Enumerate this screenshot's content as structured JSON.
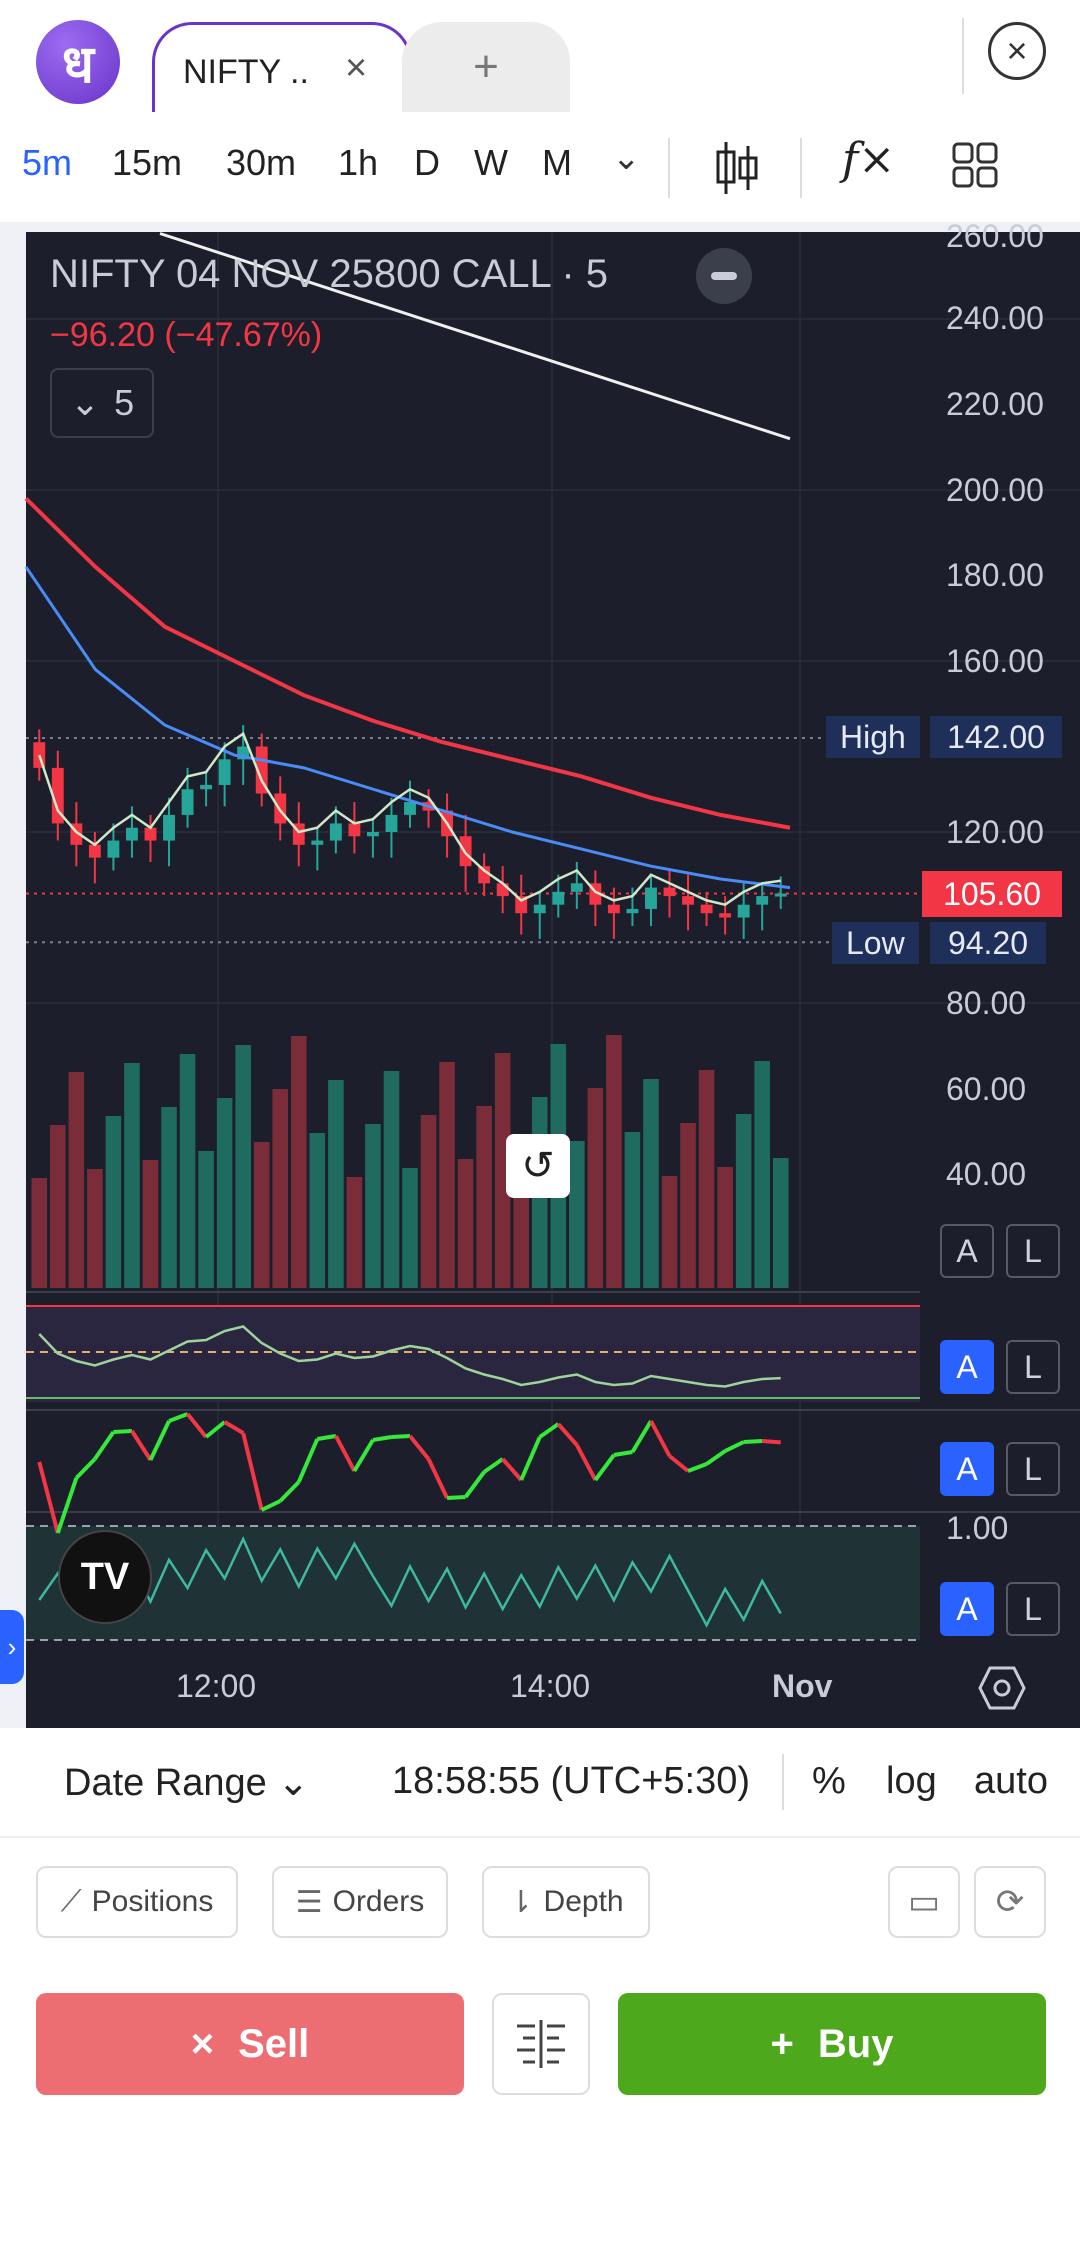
{
  "topbar": {
    "logo_glyph": "ध",
    "active_tab_label": "NIFTY ..",
    "close_glyph": "×",
    "new_tab_glyph": "+",
    "close_window_glyph": "×"
  },
  "timeframes": {
    "items": [
      "5m",
      "15m",
      "30m",
      "1h",
      "D",
      "W",
      "M"
    ],
    "active": "5m",
    "more_glyph": "⌄",
    "fx_label": "f×"
  },
  "chart": {
    "symbol_title": "NIFTY 04 NOV 25800 CALL · 5",
    "change_text": "−96.20 (−47.67%)",
    "collapse_count": "5",
    "price_axis": [
      "260.00",
      "240.00",
      "220.00",
      "200.00",
      "180.00",
      "160.00",
      "120.00",
      "80.00",
      "60.00",
      "40.00"
    ],
    "high_label": "High",
    "high_value": "142.00",
    "low_label": "Low",
    "low_value": "94.20",
    "current_price": "105.60",
    "panel_value_label": "1.00",
    "time_axis": [
      "12:00",
      "14:00",
      "Nov"
    ],
    "al_a": "A",
    "al_l": "L",
    "reset_glyph": "↺",
    "tv_logo": "TV",
    "colors": {
      "up": "#26a69a",
      "down": "#f23645",
      "ema_red": "#f23645",
      "ema_blue": "#4a8cf7",
      "ema_white": "#f0f0f0",
      "accent": "#2962ff"
    }
  },
  "chart_data": {
    "type": "line",
    "title": "NIFTY 04 NOV 25800 CALL · 5",
    "ylim": [
      80,
      260
    ],
    "x_ticks": [
      "12:00",
      "14:00",
      "Nov"
    ],
    "closes": [
      135,
      122,
      117,
      114,
      118,
      121,
      118,
      124,
      130,
      131,
      137,
      140,
      129,
      122,
      117,
      118,
      122,
      119,
      120,
      124,
      127,
      125,
      119,
      112,
      108,
      105,
      101,
      103,
      106,
      108,
      103,
      101,
      102,
      107,
      105,
      103,
      101,
      100,
      103,
      105,
      105.6
    ],
    "series": [
      {
        "name": "",
        "color": "#f23645",
        "values": [
          198,
          182,
          168,
          160,
          152,
          146,
          141,
          137,
          133,
          128,
          124,
          121
        ]
      },
      {
        "name": "",
        "color": "#4a8cf7",
        "values": [
          182,
          158,
          145,
          138,
          135,
          130,
          125,
          120,
          116,
          112,
          109,
          107
        ]
      },
      {
        "name": "",
        "color": "#f0f0f0",
        "values": [
          260,
          252,
          244,
          236,
          228,
          220,
          212
        ]
      }
    ],
    "high": 142.0,
    "low": 94.2,
    "last": 105.6,
    "grid": true
  },
  "status": {
    "date_range": "Date Range",
    "date_range_chevron": "⌄",
    "clock": "18:58:55 (UTC+5:30)",
    "percent": "%",
    "log": "log",
    "auto": "auto"
  },
  "orders": {
    "positions": "Positions",
    "orders": "Orders",
    "depth": "Depth",
    "sell": "Sell",
    "buy": "Buy",
    "sell_glyph": "×",
    "buy_glyph": "+"
  }
}
